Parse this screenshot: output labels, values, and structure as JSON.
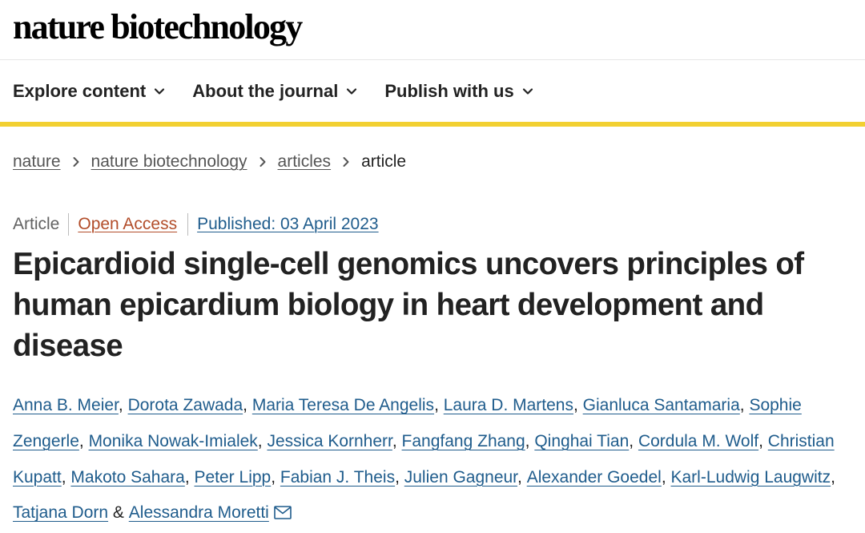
{
  "header": {
    "logo_text": "nature biotechnology"
  },
  "nav": {
    "items": [
      {
        "label": "Explore content",
        "icon": "chevron-down-icon"
      },
      {
        "label": "About the journal",
        "icon": "chevron-down-icon"
      },
      {
        "label": "Publish with us",
        "icon": "chevron-down-icon"
      }
    ],
    "accent_color": "#f2d031"
  },
  "breadcrumb": {
    "items": [
      "nature",
      "nature biotechnology",
      "articles"
    ],
    "current": "article",
    "separator_icon": "chevron-right-icon"
  },
  "article": {
    "type": "Article",
    "access": "Open Access",
    "published": "Published: 03 April 2023",
    "title": "Epicardioid single-cell genomics uncovers principles of human epicardium biology in heart development and disease",
    "authors": [
      "Anna B. Meier",
      "Dorota Zawada",
      "Maria Teresa De Angelis",
      "Laura D. Martens",
      "Gianluca Santamaria",
      "Sophie Zengerle",
      "Monika Nowak-Imialek",
      "Jessica Kornherr",
      "Fangfang Zhang",
      "Qinghai Tian",
      "Cordula M. Wolf",
      "Christian Kupatt",
      "Makoto Sahara",
      "Peter Lipp",
      "Fabian J. Theis",
      "Julien Gagneur",
      "Alexander Goedel",
      "Karl-Ludwig Laugwitz",
      "Tatjana Dorn",
      "Alessandra Moretti"
    ],
    "author_separator": ", ",
    "last_author_joiner": " & ",
    "contact_icon": "envelope-icon"
  },
  "colors": {
    "link": "#1f5c8c",
    "open_access": "#b24d2a",
    "breadcrumb_link": "#555555",
    "text": "#222222"
  }
}
